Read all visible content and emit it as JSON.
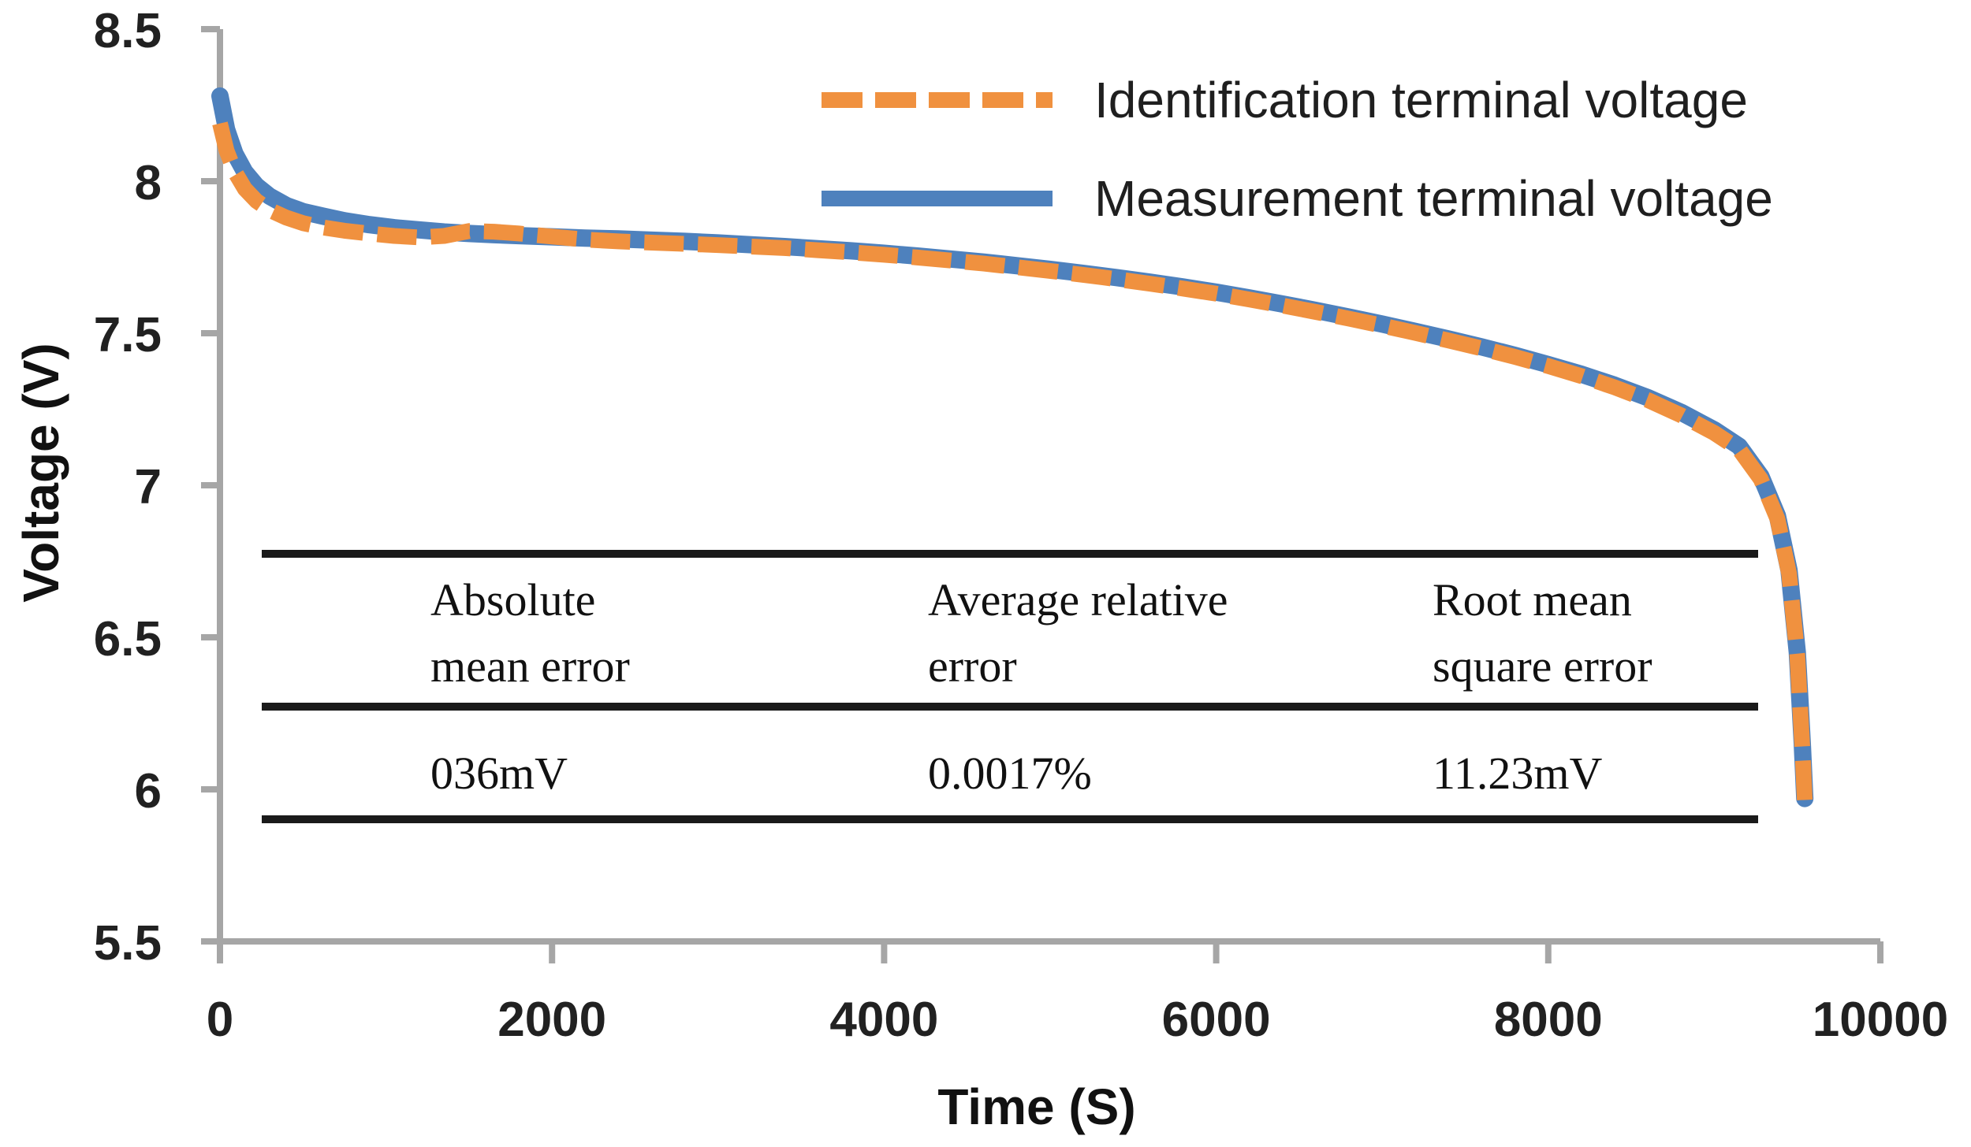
{
  "colors": {
    "identification_orange": "#F0913F",
    "measurement_blue": "#4E81BD",
    "axis_gray": "#A6A6A6",
    "text_black": "#212121"
  },
  "legend": {
    "items": [
      {
        "label": "Identification terminal voltage",
        "style": "dashed",
        "color": "#F0913F"
      },
      {
        "label": "Measurement terminal voltage",
        "style": "solid",
        "color": "#4E81BD"
      }
    ]
  },
  "inset_table": {
    "columns": [
      "Absolute mean error",
      "Average relative error",
      "Root mean square error"
    ],
    "values": [
      "036mV",
      "0.0017%",
      "11.23mV"
    ]
  },
  "chart_data": {
    "type": "line",
    "title": "",
    "xlabel": "Time (S)",
    "ylabel": "Voltage (V)",
    "xlim": [
      0,
      10000
    ],
    "ylim": [
      5.5,
      8.5
    ],
    "grid": false,
    "legend_position": "inside-top-right",
    "x_ticks": [
      0,
      2000,
      4000,
      6000,
      8000,
      10000
    ],
    "x_tick_labels": [
      "0",
      "2000",
      "4000",
      "6000",
      "8000",
      "10000"
    ],
    "y_ticks": [
      8.5,
      8,
      7.5,
      7,
      6.5,
      6,
      5.5
    ],
    "y_tick_labels": [
      "8.5",
      "8",
      "7.5",
      "7",
      "6.5",
      "6",
      "5.5"
    ],
    "series": [
      {
        "name": "Identification terminal voltage",
        "style": "dashed",
        "color": "#F0913F",
        "x": [
          0,
          40,
          90,
          150,
          220,
          300,
          400,
          500,
          620,
          750,
          900,
          1050,
          1200,
          1350,
          1500,
          1650,
          1800,
          2000,
          2200,
          2400,
          2600,
          2800,
          3000,
          3200,
          3400,
          3600,
          3800,
          4000,
          4200,
          4400,
          4600,
          4800,
          5000,
          5200,
          5400,
          5600,
          5800,
          6000,
          6200,
          6400,
          6600,
          6800,
          7000,
          7200,
          7400,
          7600,
          7800,
          8000,
          8200,
          8400,
          8600,
          8800,
          9000,
          9150,
          9280,
          9380,
          9450,
          9500,
          9530,
          9545
        ],
        "values": [
          8.19,
          8.1,
          8.03,
          7.975,
          7.935,
          7.905,
          7.88,
          7.862,
          7.848,
          7.837,
          7.828,
          7.82,
          7.815,
          7.82,
          7.836,
          7.834,
          7.828,
          7.818,
          7.808,
          7.802,
          7.798,
          7.794,
          7.79,
          7.785,
          7.78,
          7.773,
          7.766,
          7.758,
          7.749,
          7.739,
          7.729,
          7.717,
          7.705,
          7.692,
          7.678,
          7.663,
          7.647,
          7.63,
          7.611,
          7.591,
          7.57,
          7.548,
          7.525,
          7.501,
          7.476,
          7.45,
          7.422,
          7.392,
          7.359,
          7.322,
          7.28,
          7.23,
          7.172,
          7.118,
          7.02,
          6.89,
          6.71,
          6.44,
          6.14,
          5.96
        ]
      },
      {
        "name": "Measurement terminal voltage",
        "style": "solid",
        "color": "#4E81BD",
        "x": [
          0,
          40,
          90,
          150,
          220,
          300,
          400,
          500,
          620,
          750,
          900,
          1050,
          1200,
          1350,
          1500,
          1650,
          1800,
          2000,
          2200,
          2400,
          2600,
          2800,
          3000,
          3200,
          3400,
          3600,
          3800,
          4000,
          4200,
          4400,
          4600,
          4800,
          5000,
          5200,
          5400,
          5600,
          5800,
          6000,
          6200,
          6400,
          6600,
          6800,
          7000,
          7200,
          7400,
          7600,
          7800,
          8000,
          8200,
          8400,
          8600,
          8800,
          9000,
          9150,
          9280,
          9380,
          9450,
          9500,
          9530,
          9545
        ],
        "values": [
          8.28,
          8.17,
          8.09,
          8.03,
          7.985,
          7.95,
          7.92,
          7.9,
          7.885,
          7.87,
          7.857,
          7.847,
          7.84,
          7.833,
          7.828,
          7.824,
          7.821,
          7.817,
          7.813,
          7.81,
          7.806,
          7.802,
          7.797,
          7.791,
          7.785,
          7.778,
          7.771,
          7.763,
          7.754,
          7.744,
          7.734,
          7.722,
          7.71,
          7.697,
          7.683,
          7.668,
          7.652,
          7.635,
          7.616,
          7.596,
          7.575,
          7.553,
          7.53,
          7.506,
          7.481,
          7.455,
          7.427,
          7.397,
          7.365,
          7.329,
          7.288,
          7.24,
          7.182,
          7.128,
          7.03,
          6.9,
          6.72,
          6.45,
          6.15,
          5.97
        ]
      }
    ],
    "axis": {
      "x_title": "Time (S)",
      "y_title": "Voltage (V)"
    }
  }
}
